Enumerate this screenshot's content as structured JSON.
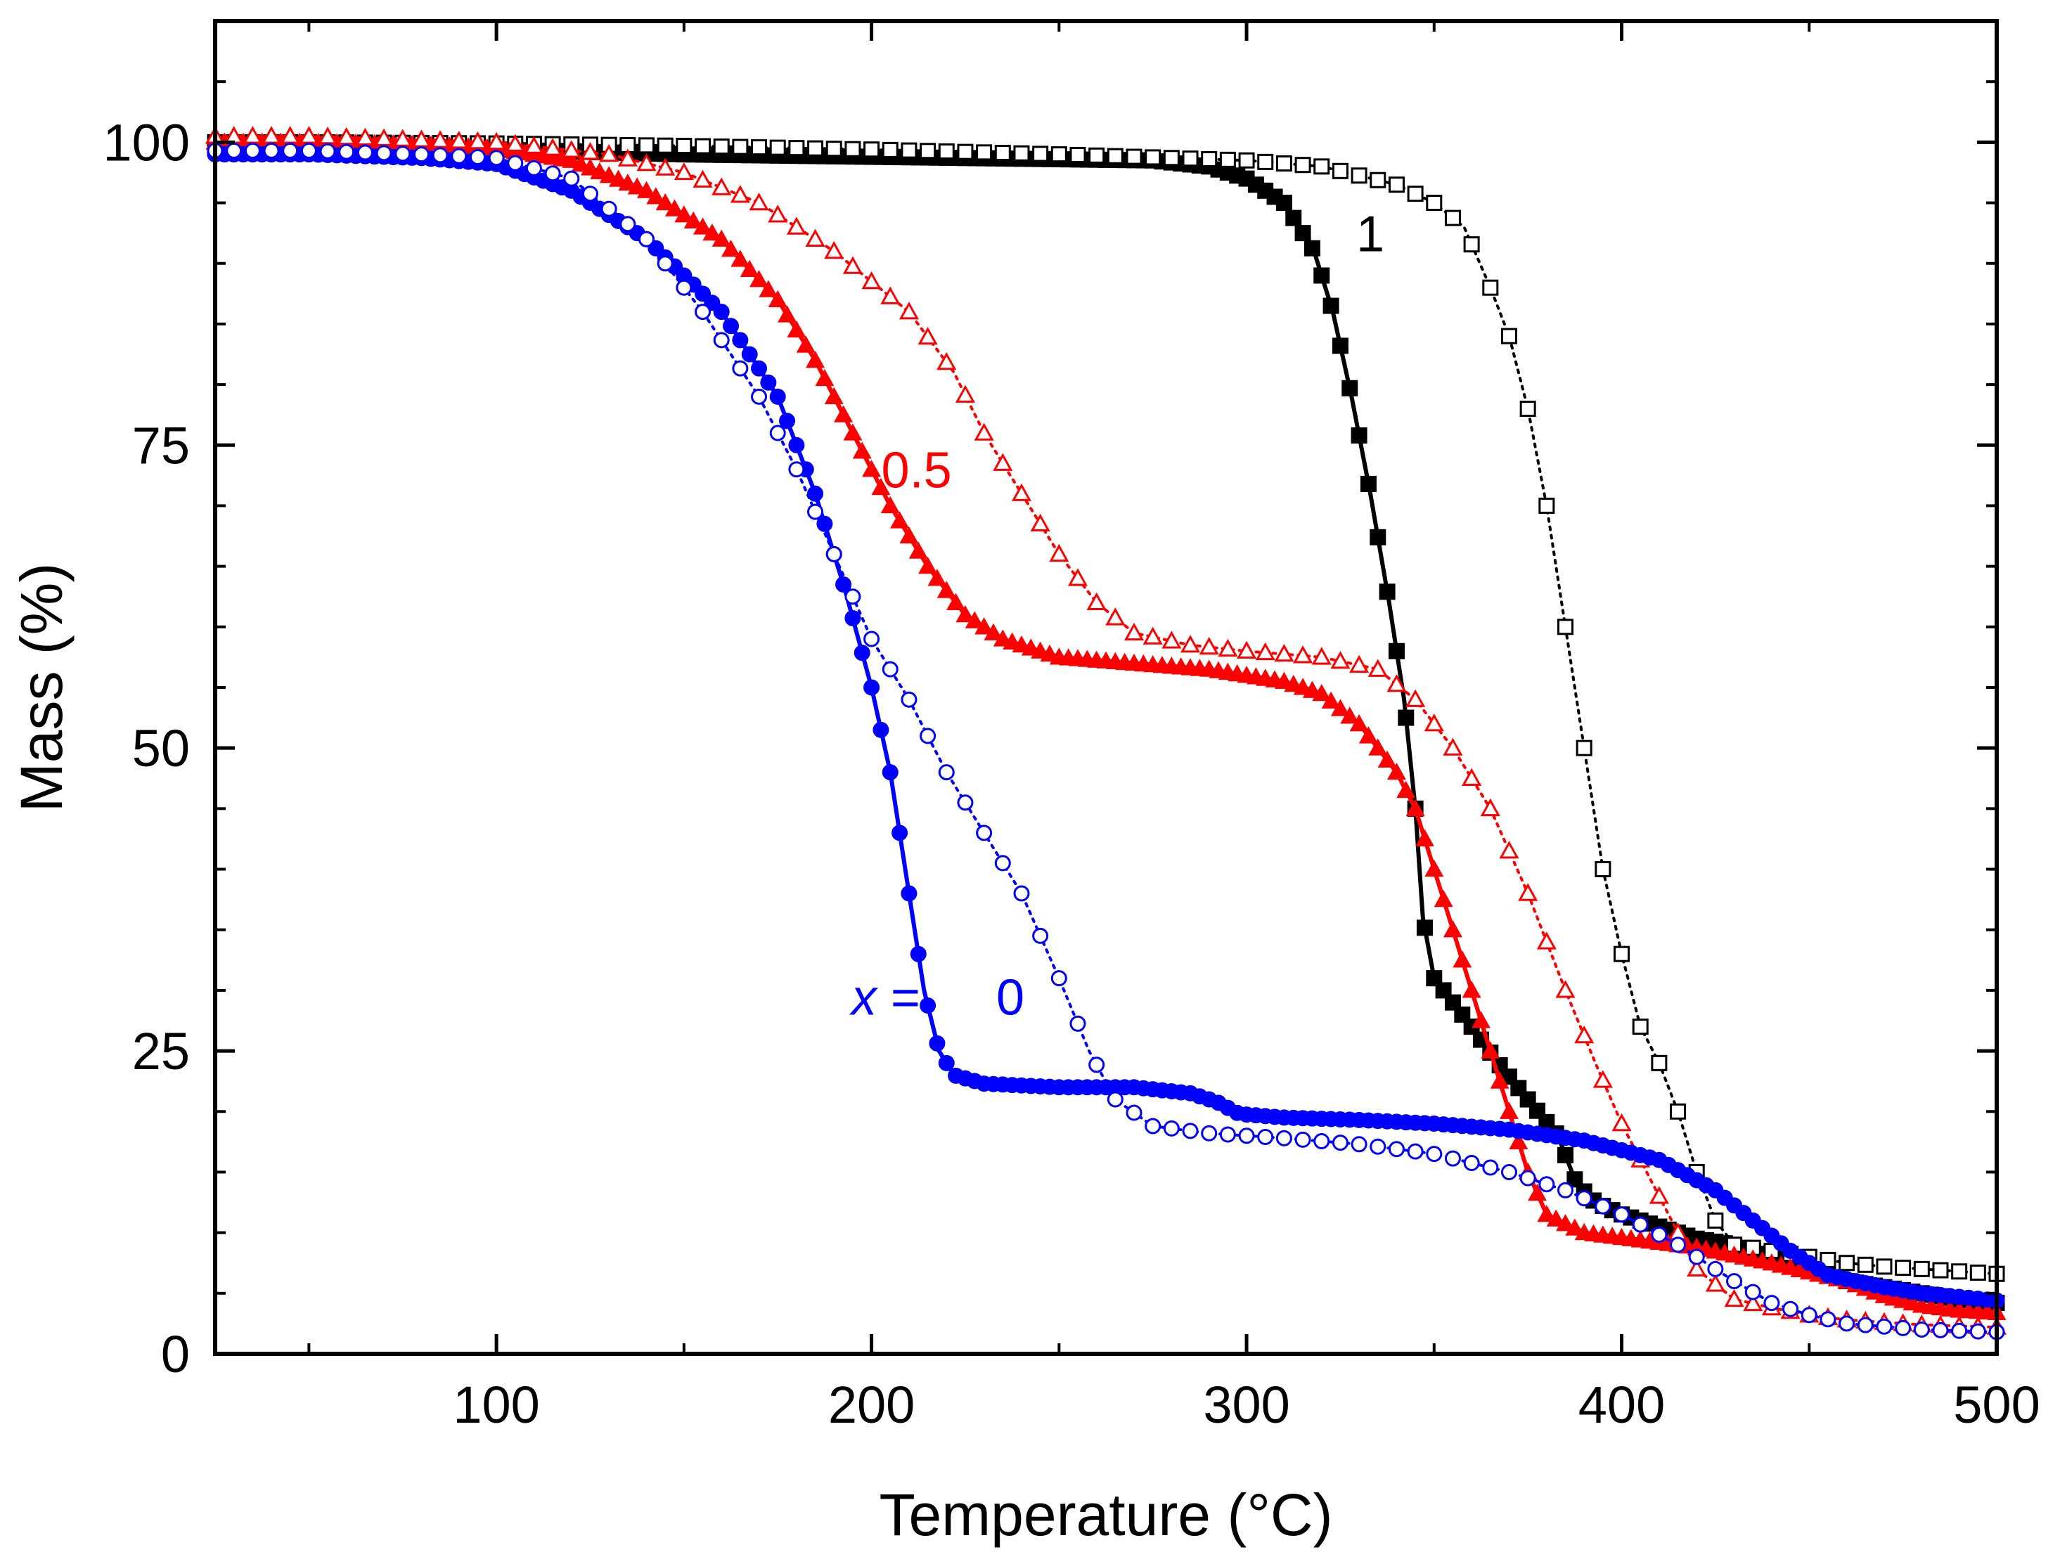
{
  "chart_data": {
    "type": "scatter",
    "title": "",
    "xlabel": "Temperature (°C)",
    "ylabel": "Mass (%)",
    "xlim": [
      25,
      500
    ],
    "ylim": [
      0,
      110
    ],
    "x_ticks": [
      100,
      200,
      300,
      400,
      500
    ],
    "x_tick_labels": [
      "100",
      "200",
      "300",
      "400",
      "500"
    ],
    "y_ticks": [
      0,
      25,
      50,
      75,
      100
    ],
    "y_tick_labels": [
      "0",
      "25",
      "50",
      "75",
      "100"
    ],
    "grid": false,
    "labels": [
      {
        "text": "1",
        "x": 333,
        "y": 91,
        "color": "#000000"
      },
      {
        "text": "0.5",
        "x": 212,
        "y": 71.5,
        "color": "#ff0000"
      },
      {
        "text": "0",
        "x": 237,
        "y": 28,
        "color": "#0000ff"
      }
    ],
    "x_label_prefix": {
      "italic": "x",
      "rest": " =",
      "color": "#0000ff"
    },
    "series": [
      {
        "name": "x = 1 (filled squares, solid)",
        "color": "#000000",
        "marker": "square",
        "filled": true,
        "line": "solid",
        "points": [
          [
            25,
            99.5
          ],
          [
            50,
            99.5
          ],
          [
            100,
            99.4
          ],
          [
            150,
            99
          ],
          [
            200,
            98.8
          ],
          [
            250,
            98.6
          ],
          [
            275,
            98.5
          ],
          [
            290,
            98
          ],
          [
            300,
            97
          ],
          [
            310,
            95
          ],
          [
            318,
            91
          ],
          [
            323,
            86
          ],
          [
            328,
            79
          ],
          [
            333,
            71
          ],
          [
            338,
            62
          ],
          [
            342,
            54
          ],
          [
            345,
            45
          ],
          [
            347,
            36
          ],
          [
            350,
            31
          ],
          [
            355,
            29
          ],
          [
            360,
            27
          ],
          [
            367,
            24
          ],
          [
            375,
            21
          ],
          [
            383,
            18
          ],
          [
            388,
            14
          ],
          [
            393,
            12.5
          ],
          [
            400,
            11.5
          ],
          [
            410,
            10.5
          ],
          [
            420,
            9.5
          ],
          [
            430,
            9
          ],
          [
            440,
            8
          ],
          [
            450,
            7
          ],
          [
            460,
            6
          ],
          [
            470,
            5.5
          ],
          [
            480,
            5
          ],
          [
            490,
            4.5
          ],
          [
            500,
            4.2
          ]
        ]
      },
      {
        "name": "x = 1 (open squares, dotted)",
        "color": "#000000",
        "marker": "square",
        "filled": false,
        "line": "dotted",
        "points": [
          [
            25,
            100
          ],
          [
            50,
            100
          ],
          [
            100,
            99.9
          ],
          [
            150,
            99.7
          ],
          [
            200,
            99.4
          ],
          [
            250,
            99
          ],
          [
            300,
            98.5
          ],
          [
            320,
            98
          ],
          [
            340,
            96.5
          ],
          [
            350,
            95
          ],
          [
            358,
            93
          ],
          [
            365,
            88
          ],
          [
            370,
            84
          ],
          [
            375,
            78
          ],
          [
            380,
            70
          ],
          [
            385,
            60
          ],
          [
            390,
            50
          ],
          [
            395,
            40
          ],
          [
            400,
            33
          ],
          [
            405,
            27
          ],
          [
            410,
            24
          ],
          [
            415,
            20
          ],
          [
            420,
            15
          ],
          [
            425,
            11
          ],
          [
            430,
            9
          ],
          [
            440,
            8.5
          ],
          [
            450,
            8
          ],
          [
            460,
            7.5
          ],
          [
            470,
            7.2
          ],
          [
            480,
            7
          ],
          [
            490,
            6.8
          ],
          [
            500,
            6.6
          ]
        ]
      },
      {
        "name": "x = 0.5 (filled triangles, solid)",
        "color": "#ff0000",
        "marker": "triangle",
        "filled": true,
        "line": "solid",
        "points": [
          [
            25,
            100
          ],
          [
            50,
            100
          ],
          [
            80,
            99.8
          ],
          [
            100,
            99.5
          ],
          [
            120,
            98.5
          ],
          [
            140,
            96
          ],
          [
            160,
            92
          ],
          [
            175,
            87
          ],
          [
            185,
            82
          ],
          [
            195,
            76
          ],
          [
            205,
            70
          ],
          [
            215,
            65
          ],
          [
            225,
            61
          ],
          [
            235,
            59
          ],
          [
            250,
            57.5
          ],
          [
            270,
            57
          ],
          [
            290,
            56.5
          ],
          [
            300,
            56
          ],
          [
            310,
            55.5
          ],
          [
            320,
            54.5
          ],
          [
            330,
            52
          ],
          [
            340,
            48
          ],
          [
            345,
            45
          ],
          [
            350,
            40
          ],
          [
            355,
            35
          ],
          [
            360,
            30
          ],
          [
            365,
            25
          ],
          [
            370,
            20
          ],
          [
            375,
            15
          ],
          [
            380,
            11.5
          ],
          [
            390,
            10
          ],
          [
            400,
            9.6
          ],
          [
            420,
            8.8
          ],
          [
            440,
            7.5
          ],
          [
            460,
            6
          ],
          [
            470,
            4.8
          ],
          [
            480,
            4
          ],
          [
            490,
            3.6
          ],
          [
            500,
            3.4
          ]
        ]
      },
      {
        "name": "x = 0.5 (open triangles, dotted)",
        "color": "#ff0000",
        "marker": "triangle",
        "filled": false,
        "line": "dotted",
        "points": [
          [
            25,
            100.5
          ],
          [
            50,
            100.5
          ],
          [
            100,
            100
          ],
          [
            130,
            99
          ],
          [
            150,
            97.5
          ],
          [
            170,
            95
          ],
          [
            190,
            91
          ],
          [
            210,
            86
          ],
          [
            222,
            81
          ],
          [
            230,
            76
          ],
          [
            240,
            71
          ],
          [
            250,
            66
          ],
          [
            260,
            62
          ],
          [
            270,
            59.5
          ],
          [
            285,
            58.5
          ],
          [
            300,
            58
          ],
          [
            320,
            57.5
          ],
          [
            335,
            56.5
          ],
          [
            345,
            54
          ],
          [
            355,
            50
          ],
          [
            365,
            45
          ],
          [
            375,
            38
          ],
          [
            385,
            30
          ],
          [
            393,
            24
          ],
          [
            400,
            19
          ],
          [
            410,
            13
          ],
          [
            420,
            7
          ],
          [
            430,
            4.5
          ],
          [
            440,
            3.8
          ],
          [
            450,
            3.2
          ],
          [
            460,
            2.8
          ],
          [
            480,
            2.4
          ],
          [
            500,
            2.2
          ]
        ]
      },
      {
        "name": "x = 0 (filled circles, solid)",
        "color": "#0000ff",
        "marker": "circle",
        "filled": true,
        "line": "solid",
        "points": [
          [
            25,
            99
          ],
          [
            50,
            99
          ],
          [
            80,
            98.7
          ],
          [
            100,
            98.2
          ],
          [
            120,
            96
          ],
          [
            140,
            92
          ],
          [
            160,
            86
          ],
          [
            175,
            79
          ],
          [
            185,
            71
          ],
          [
            193,
            63
          ],
          [
            200,
            55
          ],
          [
            205,
            48
          ],
          [
            210,
            38
          ],
          [
            214,
            30
          ],
          [
            218,
            25
          ],
          [
            222,
            23
          ],
          [
            230,
            22.3
          ],
          [
            250,
            22
          ],
          [
            270,
            22
          ],
          [
            285,
            21.5
          ],
          [
            292,
            20.8
          ],
          [
            298,
            19.8
          ],
          [
            310,
            19.5
          ],
          [
            330,
            19.3
          ],
          [
            350,
            19
          ],
          [
            370,
            18.5
          ],
          [
            390,
            17.6
          ],
          [
            410,
            16
          ],
          [
            425,
            13.5
          ],
          [
            435,
            11
          ],
          [
            445,
            8.5
          ],
          [
            455,
            6.5
          ],
          [
            470,
            5.5
          ],
          [
            480,
            5
          ],
          [
            490,
            4.7
          ],
          [
            500,
            4.4
          ]
        ]
      },
      {
        "name": "x = 0 (open circles, dotted)",
        "color": "#0000ff",
        "marker": "circle",
        "filled": false,
        "line": "dotted",
        "points": [
          [
            25,
            99.3
          ],
          [
            50,
            99.3
          ],
          [
            80,
            99
          ],
          [
            100,
            98.7
          ],
          [
            120,
            97
          ],
          [
            140,
            92
          ],
          [
            155,
            86
          ],
          [
            170,
            79
          ],
          [
            180,
            73
          ],
          [
            190,
            66
          ],
          [
            200,
            59
          ],
          [
            210,
            54
          ],
          [
            220,
            48
          ],
          [
            230,
            43
          ],
          [
            240,
            38
          ],
          [
            250,
            31
          ],
          [
            258,
            25
          ],
          [
            265,
            21
          ],
          [
            275,
            18.8
          ],
          [
            290,
            18.2
          ],
          [
            310,
            17.8
          ],
          [
            330,
            17.3
          ],
          [
            350,
            16.5
          ],
          [
            370,
            15
          ],
          [
            385,
            13.5
          ],
          [
            400,
            11.5
          ],
          [
            415,
            9
          ],
          [
            430,
            6
          ],
          [
            440,
            4.2
          ],
          [
            450,
            3.2
          ],
          [
            460,
            2.5
          ],
          [
            480,
            2
          ],
          [
            500,
            1.8
          ]
        ]
      }
    ]
  }
}
